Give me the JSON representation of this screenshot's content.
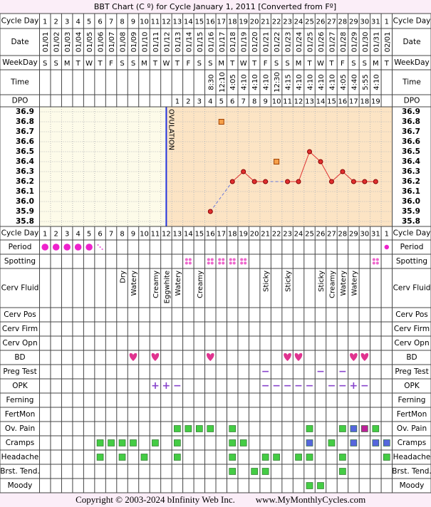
{
  "title": "BBT Chart (C º) for Cycle January 1, 2011  [Converted from Fº]",
  "footer": {
    "copyright": "Copyright © 2003-2024 bInfinity Web Inc.",
    "site": "www.MyMonthlyCycles.com"
  },
  "labels": {
    "cycle_day": "Cycle Day",
    "date": "Date",
    "weekday": "WeekDay",
    "time": "Time",
    "dpo": "DPO",
    "period": "Period",
    "spotting": "Spotting",
    "cerv_fluid": "Cerv Fluid",
    "cerv_pos": "Cerv Pos",
    "cerv_firm": "Cerv Firm",
    "cerv_opn": "Cerv Opn",
    "bd": "BD",
    "preg_test": "Preg Test",
    "opk": "OPK",
    "ferning": "Ferning",
    "fertmon": "FertMon",
    "ov_pain": "Ov. Pain",
    "cramps": "Cramps",
    "headache": "Headache",
    "brst_tend": "Brst. Tend.",
    "moody": "Moody"
  },
  "cycle_days": [
    1,
    2,
    3,
    4,
    5,
    6,
    7,
    8,
    9,
    10,
    11,
    12,
    13,
    14,
    15,
    16,
    17,
    18,
    19,
    20,
    21,
    22,
    23,
    24,
    25,
    26,
    27,
    28,
    29,
    30,
    31,
    1
  ],
  "dates": [
    "01/01",
    "01/02",
    "01/03",
    "01/04",
    "01/05",
    "01/06",
    "01/07",
    "01/08",
    "01/09",
    "01/10",
    "01/11",
    "01/12",
    "01/13",
    "01/14",
    "01/15",
    "01/16",
    "01/17",
    "01/18",
    "01/19",
    "01/20",
    "01/21",
    "01/22",
    "01/23",
    "01/24",
    "01/25",
    "01/26",
    "01/27",
    "01/28",
    "01/29",
    "01/30",
    "01/31",
    "02/01"
  ],
  "weekdays": [
    "S",
    "S",
    "M",
    "T",
    "W",
    "T",
    "F",
    "S",
    "S",
    "M",
    "T",
    "W",
    "T",
    "F",
    "S",
    "S",
    "M",
    "T",
    "W",
    "T",
    "F",
    "S",
    "S",
    "M",
    "T",
    "W",
    "T",
    "F",
    "S",
    "S",
    "M",
    "T"
  ],
  "times": [
    null,
    null,
    null,
    null,
    null,
    null,
    null,
    null,
    null,
    null,
    null,
    null,
    null,
    null,
    null,
    "8:30",
    "12:10",
    "4:05",
    "4:10",
    "4:10",
    "4:10",
    "12:30",
    "4:15",
    "4:10",
    "4:10",
    "4:10",
    "4:10",
    "4:05",
    "4:40",
    "5:55",
    "4:10",
    null
  ],
  "dpo": [
    null,
    null,
    null,
    null,
    null,
    null,
    null,
    null,
    null,
    null,
    null,
    null,
    1,
    2,
    3,
    4,
    5,
    6,
    7,
    8,
    9,
    10,
    11,
    12,
    13,
    14,
    15,
    16,
    17,
    18,
    19,
    null
  ],
  "temperature": {
    "ylim": [
      35.75,
      36.95
    ],
    "yticks": [
      36.9,
      36.8,
      36.7,
      36.6,
      36.5,
      36.4,
      36.3,
      36.2,
      36.1,
      {
        "value": 36,
        "label": "36.0"
      },
      35.9,
      35.8
    ],
    "values": [
      null,
      null,
      null,
      null,
      null,
      null,
      null,
      null,
      null,
      null,
      null,
      null,
      null,
      null,
      null,
      35.9,
      36.8,
      36.2,
      36.3,
      36.2,
      36.2,
      36.4,
      36.2,
      36.2,
      36.5,
      36.4,
      36.2,
      36.3,
      36.2,
      36.2,
      36.2,
      null
    ],
    "discarded_days": [
      17,
      22
    ],
    "ovulation_day": 12,
    "ovulation_label": "OVULATION"
  },
  "period": [
    3,
    3,
    3,
    3,
    3,
    1,
    null,
    null,
    null,
    null,
    null,
    null,
    null,
    null,
    null,
    null,
    null,
    null,
    null,
    null,
    null,
    null,
    null,
    null,
    null,
    null,
    null,
    null,
    null,
    null,
    null,
    2
  ],
  "spotting": [
    14,
    16,
    17,
    18,
    19,
    31
  ],
  "cerv_fluid": [
    {
      "day": 8,
      "label": "Dry"
    },
    {
      "day": 9,
      "label": "Watery"
    },
    {
      "day": 11,
      "label": "Creamy"
    },
    {
      "day": 12,
      "label": "Eggwhite"
    },
    {
      "day": 13,
      "label": "Watery"
    },
    {
      "day": 15,
      "label": "Creamy"
    },
    {
      "day": 21,
      "label": "Sticky"
    },
    {
      "day": 23,
      "label": "Sticky"
    },
    {
      "day": 26,
      "label": "Sticky"
    },
    {
      "day": 27,
      "label": "Creamy"
    },
    {
      "day": 28,
      "label": "Watery"
    },
    {
      "day": 29,
      "label": "Watery"
    }
  ],
  "bd": [
    9,
    11,
    16,
    23,
    24,
    29,
    30
  ],
  "preg_test": [
    {
      "day": 21,
      "result": "−"
    },
    {
      "day": 26,
      "result": "−"
    },
    {
      "day": 28,
      "result": "−"
    }
  ],
  "opk": [
    {
      "day": 11,
      "result": "+"
    },
    {
      "day": 12,
      "result": "+"
    },
    {
      "day": 13,
      "result": "−"
    },
    {
      "day": 21,
      "result": "−"
    },
    {
      "day": 22,
      "result": "−"
    },
    {
      "day": 23,
      "result": "−"
    },
    {
      "day": 24,
      "result": "−"
    },
    {
      "day": 25,
      "result": "−"
    },
    {
      "day": 27,
      "result": "−"
    },
    {
      "day": 28,
      "result": "−"
    },
    {
      "day": 29,
      "result": "+"
    },
    {
      "day": 30,
      "result": "−"
    }
  ],
  "symptoms": {
    "ov_pain": [
      {
        "day": 13,
        "color": "#44cc44"
      },
      {
        "day": 14,
        "color": "#44cc44"
      },
      {
        "day": 15,
        "color": "#44cc44"
      },
      {
        "day": 16,
        "color": "#44cc44"
      },
      {
        "day": 18,
        "color": "#44cc44"
      },
      {
        "day": 25,
        "color": "#44cc44"
      },
      {
        "day": 28,
        "color": "#44cc44"
      },
      {
        "day": 29,
        "color": "#5566dd"
      },
      {
        "day": 30,
        "color": "#bb2299"
      },
      {
        "day": 31,
        "color": "#44cc44"
      }
    ],
    "cramps": [
      {
        "day": 6,
        "color": "#44cc44"
      },
      {
        "day": 7,
        "color": "#44cc44"
      },
      {
        "day": 8,
        "color": "#44cc44"
      },
      {
        "day": 9,
        "color": "#44cc44"
      },
      {
        "day": 11,
        "color": "#44cc44"
      },
      {
        "day": 13,
        "color": "#44cc44"
      },
      {
        "day": 18,
        "color": "#44cc44"
      },
      {
        "day": 19,
        "color": "#44cc44"
      },
      {
        "day": 25,
        "color": "#5566dd"
      },
      {
        "day": 27,
        "color": "#44cc44"
      },
      {
        "day": 29,
        "color": "#5566dd"
      },
      {
        "day": 31,
        "color": "#5566dd"
      },
      {
        "day": 32,
        "color": "#5566dd"
      }
    ],
    "headache": [
      {
        "day": 6,
        "color": "#44cc44"
      },
      {
        "day": 8,
        "color": "#44cc44"
      },
      {
        "day": 10,
        "color": "#44cc44"
      },
      {
        "day": 13,
        "color": "#44cc44"
      },
      {
        "day": 18,
        "color": "#44cc44"
      },
      {
        "day": 21,
        "color": "#44cc44"
      },
      {
        "day": 22,
        "color": "#44cc44"
      },
      {
        "day": 24,
        "color": "#44cc44"
      },
      {
        "day": 25,
        "color": "#44cc44"
      },
      {
        "day": 28,
        "color": "#44cc44"
      },
      {
        "day": 32,
        "color": "#44cc44"
      }
    ],
    "brst_tend": [
      {
        "day": 18,
        "color": "#44cc44"
      },
      {
        "day": 20,
        "color": "#44cc44"
      },
      {
        "day": 21,
        "color": "#44cc44"
      },
      {
        "day": 28,
        "color": "#44cc44"
      }
    ],
    "moody": [
      {
        "day": 25,
        "color": "#44cc44"
      },
      {
        "day": 26,
        "color": "#44cc44"
      }
    ]
  }
}
